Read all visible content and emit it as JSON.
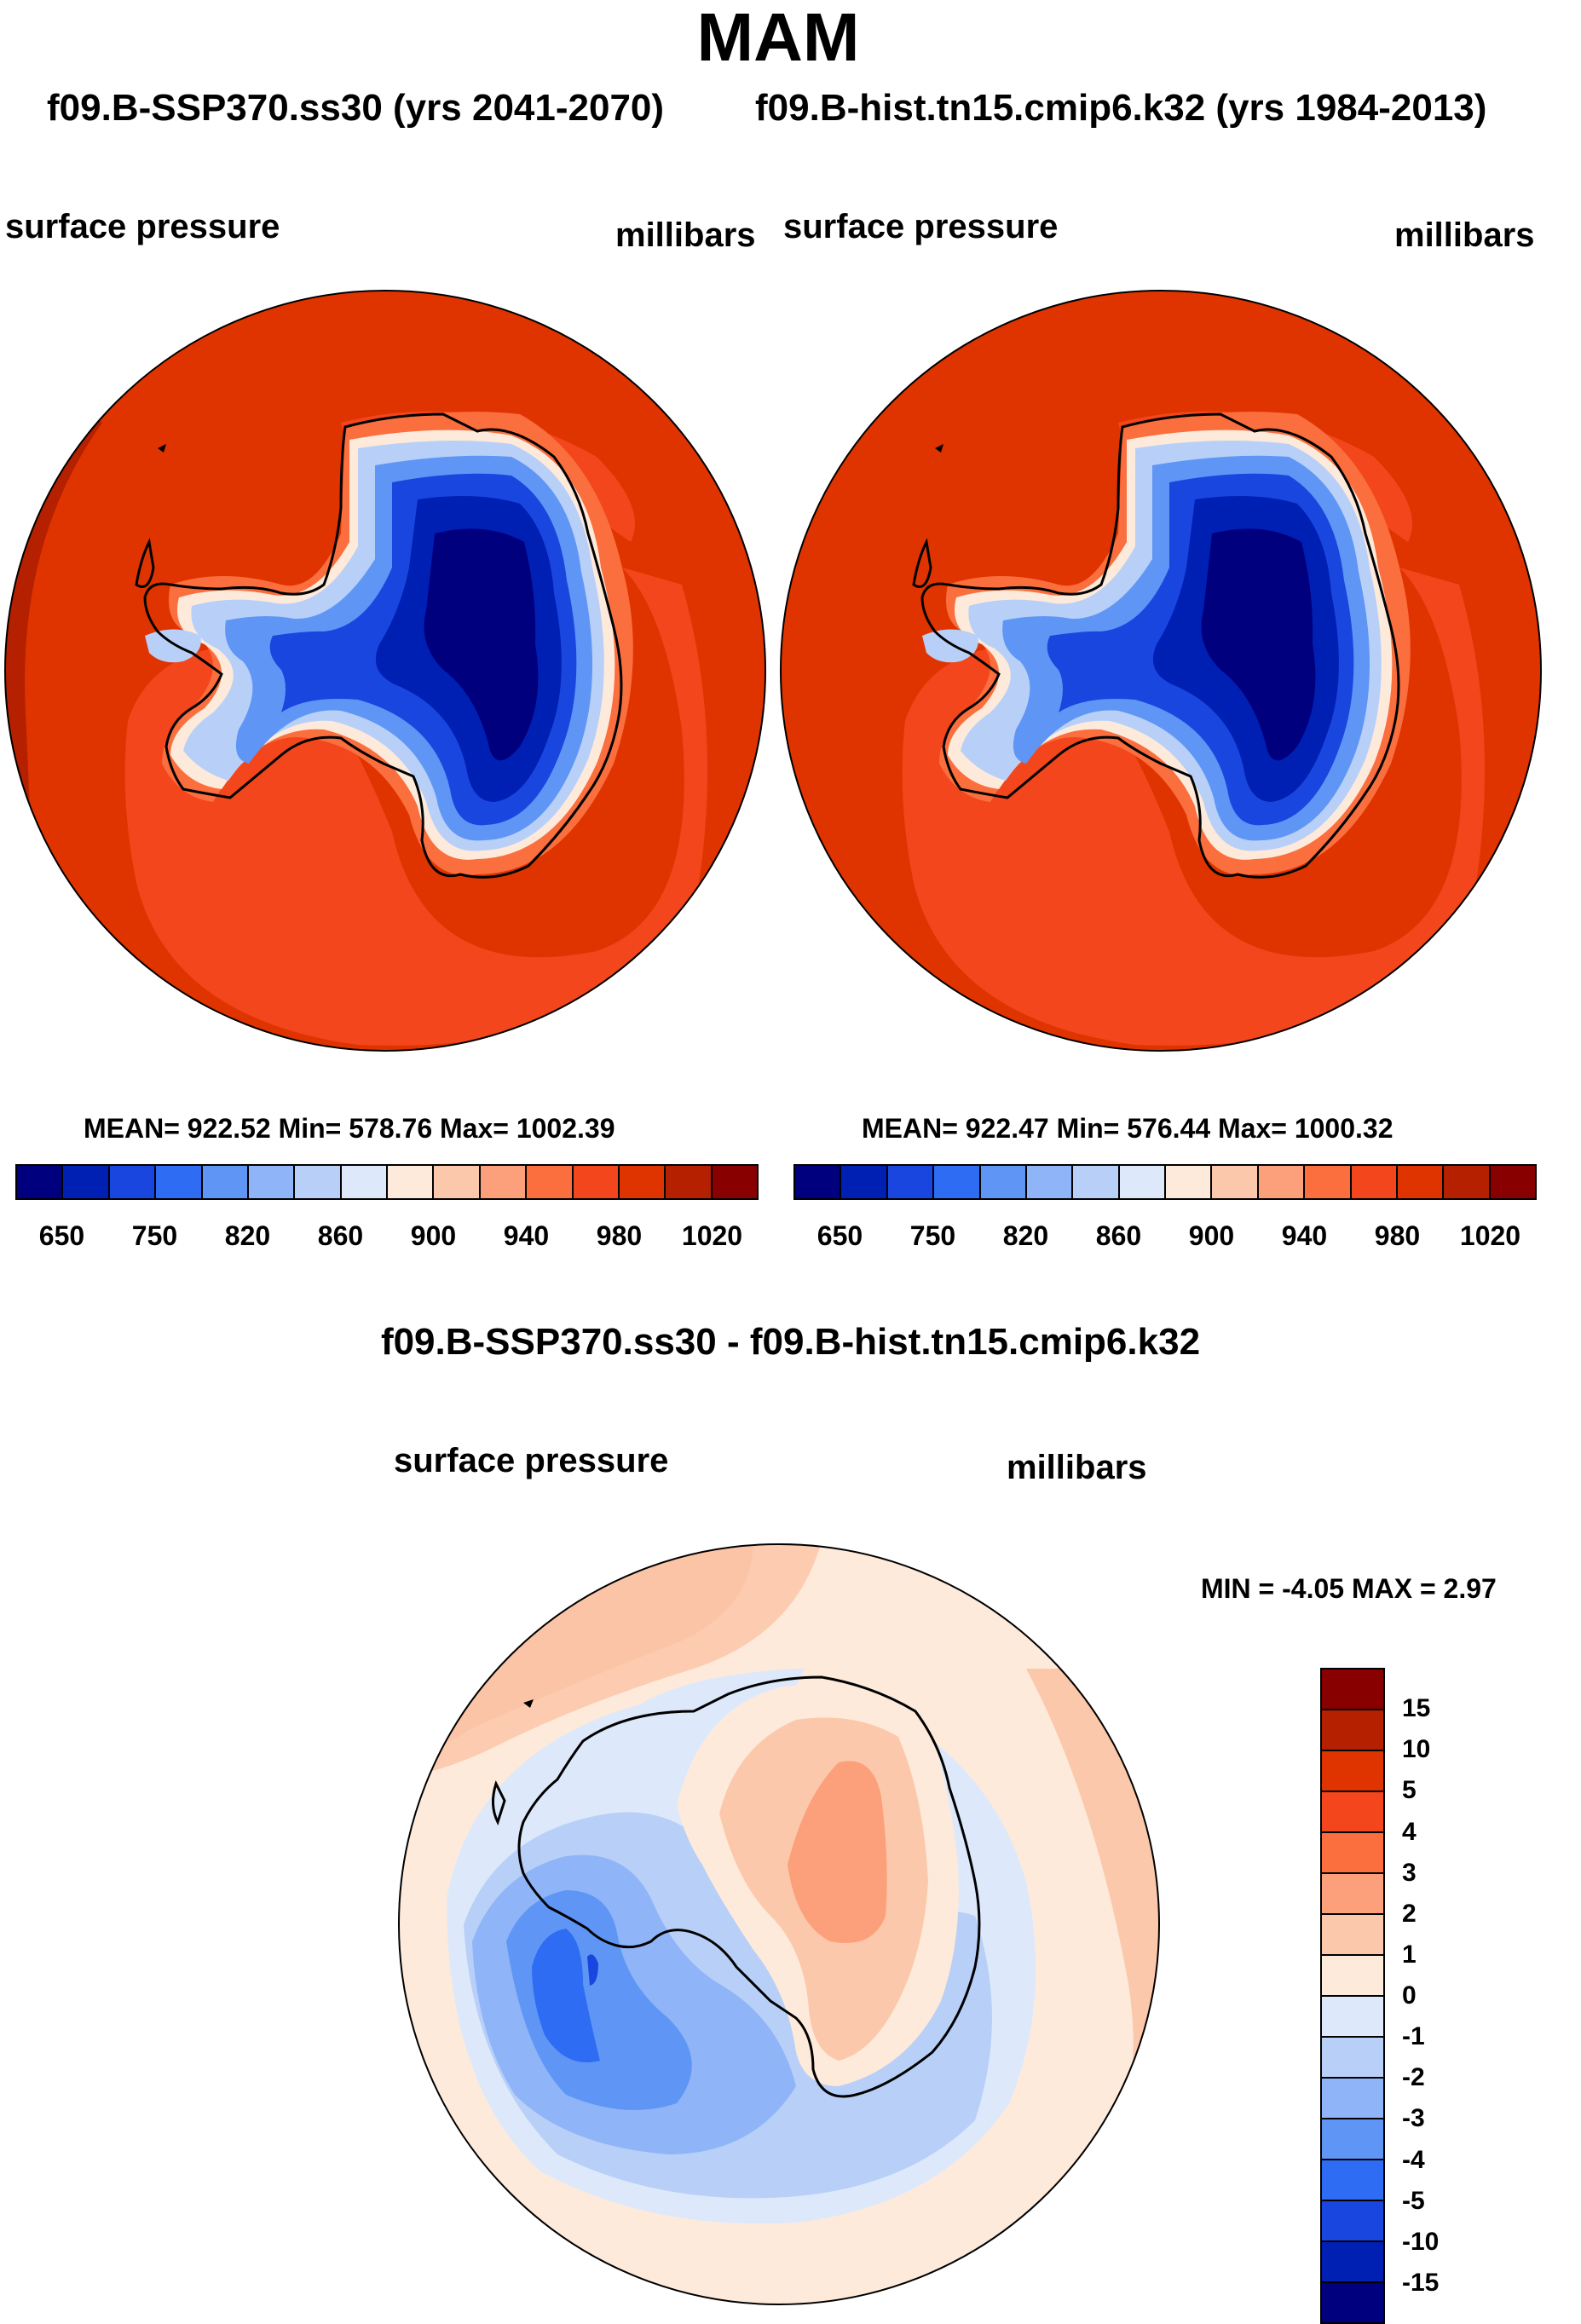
{
  "title": "MAM",
  "subtitle_left": "f09.B-SSP370.ss30 (yrs 2041-2070)",
  "subtitle_right": "f09.B-hist.tn15.cmip6.k32 (yrs 1984-2013)",
  "panel_left": {
    "field": "surface pressure",
    "units": "millibars",
    "stats": "MEAN= 922.52  Min= 578.76  Max= 1002.39"
  },
  "panel_right": {
    "field": "surface pressure",
    "units": "millibars",
    "stats": "MEAN= 922.47  Min= 576.44  Max= 1000.32"
  },
  "top_colorbar": {
    "colors": [
      "#00007f",
      "#0020b4",
      "#1a46e0",
      "#2e6cf3",
      "#5f96f5",
      "#8fb4f7",
      "#b8d0f8",
      "#dde9fb",
      "#fdeadb",
      "#fcc8ab",
      "#fba07a",
      "#fb6e3e",
      "#f3461c",
      "#e03400",
      "#b52000",
      "#880000"
    ],
    "tick_labels": [
      "650",
      "750",
      "820",
      "860",
      "900",
      "940",
      "980",
      "1020"
    ]
  },
  "diff_panel": {
    "title": "f09.B-SSP370.ss30 - f09.B-hist.tn15.cmip6.k32",
    "field": "surface pressure",
    "units": "millibars",
    "stats": "MIN =  -4.05 MAX =   2.97"
  },
  "diff_colorbar": {
    "colors": [
      "#880000",
      "#b52000",
      "#e03400",
      "#f3461c",
      "#fb6e3e",
      "#fba07a",
      "#fcc8ab",
      "#fdeadb",
      "#dde9fb",
      "#b8d0f8",
      "#8fb4f7",
      "#5f96f5",
      "#2e6cf3",
      "#1a46e0",
      "#0020b4",
      "#00007f"
    ],
    "tick_labels": [
      "15",
      "10",
      "5",
      "4",
      "3",
      "2",
      "1",
      "0",
      "-1",
      "-2",
      "-3",
      "-4",
      "-5",
      "-10",
      "-15"
    ]
  }
}
